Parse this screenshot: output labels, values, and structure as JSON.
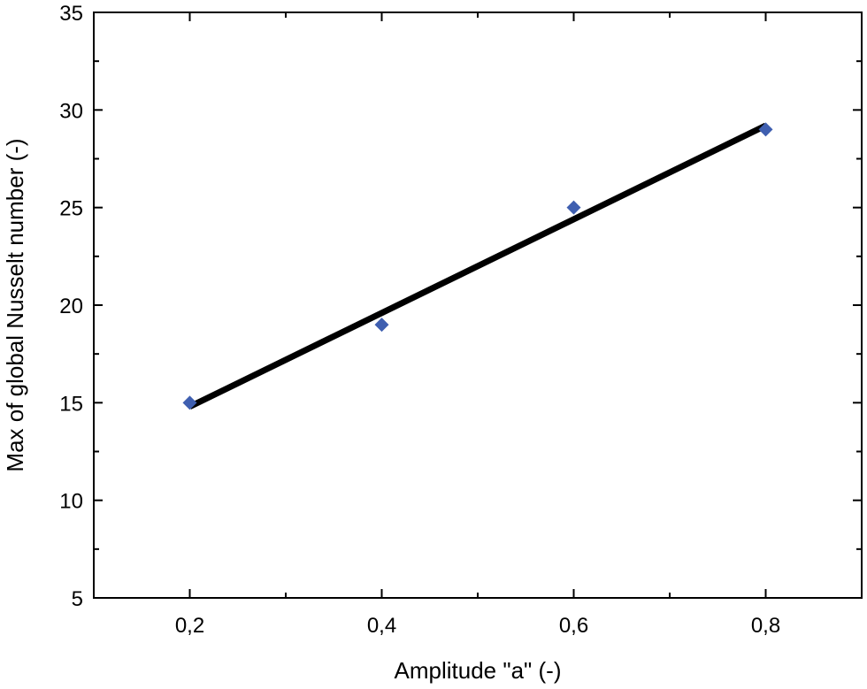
{
  "chart_data": {
    "type": "scatter",
    "title": "",
    "xlabel": "Amplitude \"a\" (-)",
    "ylabel": "Max of global Nusselt number (-)",
    "xlim": [
      0.1,
      0.9
    ],
    "ylim": [
      5,
      35
    ],
    "x_ticks": [
      0.2,
      0.4,
      0.6,
      0.8
    ],
    "x_tick_labels": [
      "0,2",
      "0,4",
      "0,6",
      "0,8"
    ],
    "x_minor_ticks": [
      0.1,
      0.3,
      0.5,
      0.7,
      0.9
    ],
    "y_ticks": [
      5,
      10,
      15,
      20,
      25,
      30,
      35
    ],
    "y_tick_labels": [
      "5",
      "10",
      "15",
      "20",
      "25",
      "30",
      "35"
    ],
    "grid": false,
    "series": [
      {
        "marker": "diamond",
        "color": "#3f5fb0",
        "x": [
          0.2,
          0.4,
          0.6,
          0.8
        ],
        "y": [
          15,
          19,
          25,
          29
        ]
      }
    ],
    "fit_line": {
      "color": "#000000",
      "x": [
        0.2,
        0.8
      ],
      "y": [
        14.8,
        29.2
      ]
    }
  }
}
